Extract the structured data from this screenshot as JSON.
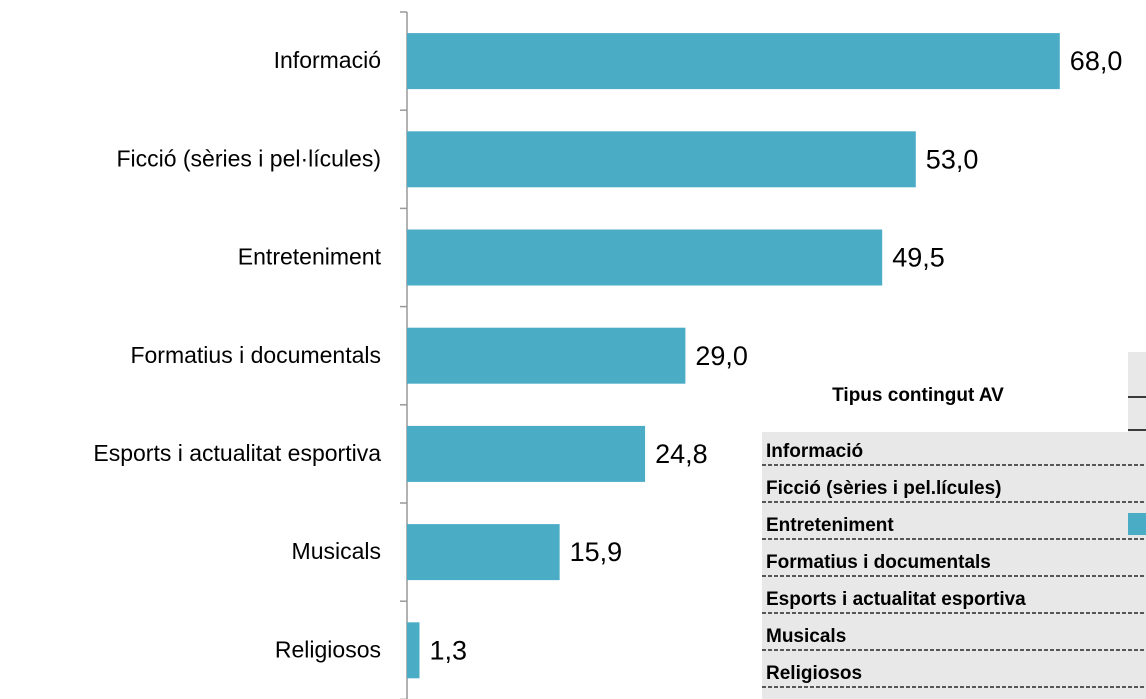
{
  "chart_data": {
    "type": "barh",
    "categories": [
      "Informació",
      "Ficció (sèries i pel·lícules)",
      "Entreteniment",
      "Formatius i documentals",
      "Esports i actualitat esportiva",
      "Musicals",
      "Religiosos"
    ],
    "values": [
      68.0,
      53.0,
      49.5,
      29.0,
      24.8,
      15.9,
      1.3
    ],
    "value_labels": [
      "68,0",
      "53,0",
      "49,5",
      "29,0",
      "24,8",
      "15,9",
      "1,3"
    ],
    "color": "#4bacc6",
    "xlim": [
      0,
      70
    ]
  },
  "table": {
    "header": "Tipus contingut AV",
    "rows": [
      "Informació",
      "Ficció (sèries i pel.lícules)",
      "Entreteniment",
      "Formatius i documentals",
      "Esports i actualitat esportiva",
      "Musicals",
      "Religiosos"
    ],
    "swatch_row": 2
  }
}
